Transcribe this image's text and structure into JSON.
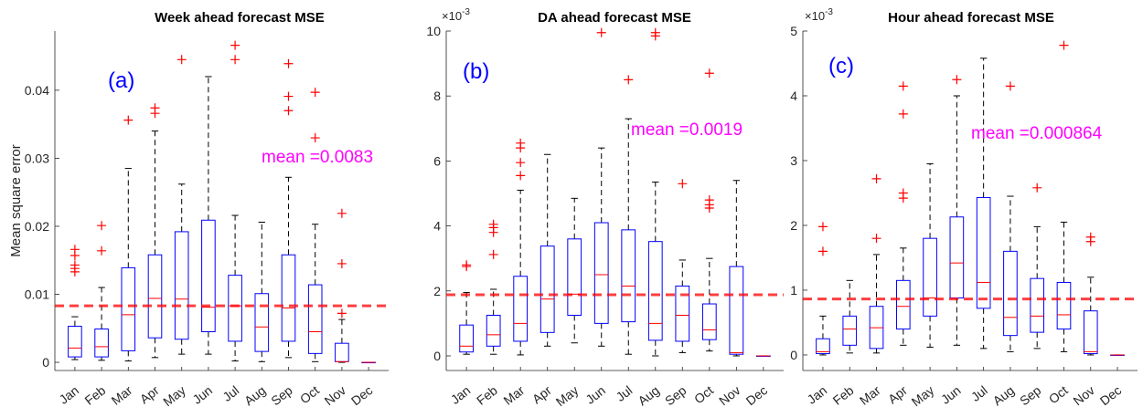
{
  "chart_data": [
    {
      "type": "box",
      "title": "Week ahead forecast MSE",
      "panel_label": "(a)",
      "ylabel": "Mean square error",
      "multiplier": "",
      "mean_text": "mean =0.0083",
      "mean_value": 0.0083,
      "ylim": [
        -0.0012,
        0.0487
      ],
      "yticks": [
        0,
        0.01,
        0.02,
        0.03,
        0.04
      ],
      "ytick_labels": [
        "0",
        "0.01",
        "0.02",
        "0.03",
        "0.04"
      ],
      "categories": [
        "Jan",
        "Feb",
        "Mar",
        "Apr",
        "May",
        "Jun",
        "Jul",
        "Aug",
        "Sep",
        "Oct",
        "Nov",
        "Dec"
      ],
      "boxes": [
        {
          "min": 0.0004,
          "q1": 0.0008,
          "median": 0.0021,
          "q3": 0.0053,
          "max": 0.0067,
          "outliers": [
            0.0133,
            0.0138,
            0.0143,
            0.0157,
            0.0166
          ]
        },
        {
          "min": 0.0003,
          "q1": 0.0008,
          "median": 0.0023,
          "q3": 0.0049,
          "max": 0.011,
          "outliers": [
            0.0164,
            0.0201
          ]
        },
        {
          "min": 0.0002,
          "q1": 0.0017,
          "median": 0.007,
          "q3": 0.0139,
          "max": 0.0285,
          "outliers": [
            0.0356
          ]
        },
        {
          "min": 0.0007,
          "q1": 0.0036,
          "median": 0.0094,
          "q3": 0.0158,
          "max": 0.034,
          "outliers": [
            0.0366,
            0.0374
          ]
        },
        {
          "min": 0.0012,
          "q1": 0.0034,
          "median": 0.0093,
          "q3": 0.0192,
          "max": 0.0262,
          "outliers": [
            0.0445
          ]
        },
        {
          "min": 0.0012,
          "q1": 0.0045,
          "median": 0.0081,
          "q3": 0.0209,
          "max": 0.042,
          "outliers": []
        },
        {
          "min": 0.0002,
          "q1": 0.0031,
          "median": 0.0083,
          "q3": 0.0128,
          "max": 0.0216,
          "outliers": [
            0.0445,
            0.0466
          ]
        },
        {
          "min": 0.0001,
          "q1": 0.0016,
          "median": 0.0052,
          "q3": 0.0101,
          "max": 0.0206,
          "outliers": []
        },
        {
          "min": 0.0007,
          "q1": 0.0031,
          "median": 0.008,
          "q3": 0.0158,
          "max": 0.0272,
          "outliers": [
            0.037,
            0.0391,
            0.0439
          ]
        },
        {
          "min": 0.0001,
          "q1": 0.0013,
          "median": 0.0045,
          "q3": 0.0114,
          "max": 0.0203,
          "outliers": [
            0.033,
            0.0397
          ]
        },
        {
          "min": 0.0,
          "q1": 0.0001,
          "median": 0.0001,
          "q3": 0.0028,
          "max": 0.0063,
          "outliers": [
            0.0072,
            0.0145,
            0.0219
          ]
        },
        {
          "min": 0.0,
          "q1": 0.0,
          "median": 0.0,
          "q3": 0.0,
          "max": 0.0,
          "outliers": []
        }
      ]
    },
    {
      "type": "box",
      "title": "DA ahead forecast MSE",
      "panel_label": "(b)",
      "ylabel": "",
      "multiplier": "×10",
      "multiplier_exp": "-3",
      "mean_text": "mean =0.0019",
      "mean_value": 1.88,
      "ylim": [
        -0.45,
        10.0
      ],
      "yticks": [
        0,
        2,
        4,
        6,
        8,
        10
      ],
      "ytick_labels": [
        "0",
        "2",
        "4",
        "6",
        "8",
        "10"
      ],
      "categories": [
        "Jan",
        "Feb",
        "Mar",
        "Apr",
        "May",
        "Jun",
        "Jul",
        "Aug",
        "Sep",
        "Oct",
        "Nov",
        "Dec"
      ],
      "boxes": [
        {
          "min": 0.05,
          "q1": 0.12,
          "median": 0.3,
          "q3": 0.95,
          "max": 1.95,
          "outliers": [
            2.75,
            2.8
          ]
        },
        {
          "min": 0.05,
          "q1": 0.3,
          "median": 0.65,
          "q3": 1.25,
          "max": 2.05,
          "outliers": [
            3.12,
            3.8,
            3.95,
            4.05
          ]
        },
        {
          "min": 0.03,
          "q1": 0.45,
          "median": 1.0,
          "q3": 2.45,
          "max": 5.1,
          "outliers": [
            5.55,
            5.95,
            6.4,
            6.55
          ]
        },
        {
          "min": 0.3,
          "q1": 0.72,
          "median": 1.75,
          "q3": 3.38,
          "max": 6.2,
          "outliers": []
        },
        {
          "min": 0.4,
          "q1": 1.25,
          "median": 1.9,
          "q3": 3.6,
          "max": 4.85,
          "outliers": []
        },
        {
          "min": 0.3,
          "q1": 1.0,
          "median": 2.5,
          "q3": 4.1,
          "max": 6.4,
          "outliers": [
            9.95
          ]
        },
        {
          "min": 0.05,
          "q1": 1.05,
          "median": 2.15,
          "q3": 3.88,
          "max": 7.3,
          "outliers": [
            8.5
          ]
        },
        {
          "min": 0.0,
          "q1": 0.48,
          "median": 1.0,
          "q3": 3.52,
          "max": 5.35,
          "outliers": [
            9.85,
            9.95
          ]
        },
        {
          "min": 0.1,
          "q1": 0.45,
          "median": 1.25,
          "q3": 2.15,
          "max": 2.95,
          "outliers": [
            5.3
          ]
        },
        {
          "min": 0.15,
          "q1": 0.5,
          "median": 0.8,
          "q3": 1.6,
          "max": 3.0,
          "outliers": [
            4.55,
            4.65,
            4.8,
            8.7
          ]
        },
        {
          "min": 0.0,
          "q1": 0.05,
          "median": 0.1,
          "q3": 2.75,
          "max": 5.4,
          "outliers": []
        },
        {
          "min": 0.0,
          "q1": 0.0,
          "median": 0.0,
          "q3": 0.0,
          "max": 0.0,
          "outliers": []
        }
      ]
    },
    {
      "type": "box",
      "title": "Hour ahead forecast MSE",
      "panel_label": "(c)",
      "ylabel": "",
      "multiplier": "×10",
      "multiplier_exp": "-3",
      "mean_text": "mean =0.000864",
      "mean_value": 0.864,
      "ylim": [
        -0.24,
        5.0
      ],
      "yticks": [
        0,
        1,
        2,
        3,
        4,
        5
      ],
      "ytick_labels": [
        "0",
        "1",
        "2",
        "3",
        "4",
        "5"
      ],
      "categories": [
        "Jan",
        "Feb",
        "Mar",
        "Apr",
        "May",
        "Jun",
        "Jul",
        "Aug",
        "Sep",
        "Oct",
        "Nov",
        "Dec"
      ],
      "boxes": [
        {
          "min": 0.0,
          "q1": 0.02,
          "median": 0.05,
          "q3": 0.25,
          "max": 0.6,
          "outliers": [
            1.6,
            1.98
          ]
        },
        {
          "min": 0.03,
          "q1": 0.15,
          "median": 0.4,
          "q3": 0.6,
          "max": 1.15,
          "outliers": []
        },
        {
          "min": 0.03,
          "q1": 0.1,
          "median": 0.42,
          "q3": 0.75,
          "max": 1.55,
          "outliers": [
            1.8,
            2.72
          ]
        },
        {
          "min": 0.15,
          "q1": 0.4,
          "median": 0.75,
          "q3": 1.15,
          "max": 1.65,
          "outliers": [
            2.42,
            2.5,
            3.72,
            4.15
          ]
        },
        {
          "min": 0.12,
          "q1": 0.6,
          "median": 0.88,
          "q3": 1.8,
          "max": 2.95,
          "outliers": []
        },
        {
          "min": 0.15,
          "q1": 0.88,
          "median": 1.42,
          "q3": 2.13,
          "max": 4.0,
          "outliers": [
            4.25
          ]
        },
        {
          "min": 0.1,
          "q1": 0.72,
          "median": 1.12,
          "q3": 2.43,
          "max": 4.58,
          "outliers": []
        },
        {
          "min": 0.05,
          "q1": 0.3,
          "median": 0.58,
          "q3": 1.6,
          "max": 2.45,
          "outliers": [
            4.15
          ]
        },
        {
          "min": 0.1,
          "q1": 0.35,
          "median": 0.6,
          "q3": 1.18,
          "max": 1.98,
          "outliers": [
            2.58
          ]
        },
        {
          "min": 0.05,
          "q1": 0.4,
          "median": 0.62,
          "q3": 1.12,
          "max": 2.05,
          "outliers": [
            4.78
          ]
        },
        {
          "min": 0.0,
          "q1": 0.02,
          "median": 0.05,
          "q3": 0.68,
          "max": 1.2,
          "outliers": [
            1.75,
            1.82
          ]
        },
        {
          "min": 0.0,
          "q1": 0.0,
          "median": 0.0,
          "q3": 0.0,
          "max": 0.0,
          "outliers": []
        }
      ]
    }
  ]
}
